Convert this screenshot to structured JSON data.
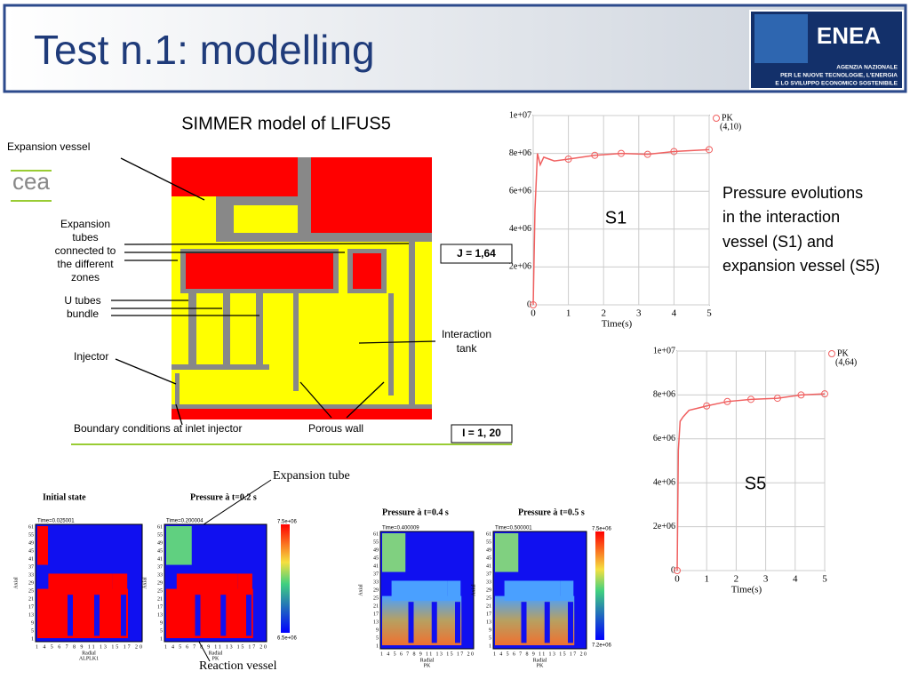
{
  "header": {
    "title": "Test n.1: modelling",
    "logo": {
      "name": "ENEA",
      "lines": [
        "AGENZIA NAZIONALE",
        "PER LE NUOVE TECNOLOGIE, L'ENERGIA",
        "E LO SVILUPPO ECONOMICO SOSTENIBILE"
      ]
    }
  },
  "model": {
    "title": "SIMMER model of LIFUS5",
    "cea": "cea",
    "labels": {
      "expansion_vessel": "Expansion vessel",
      "expansion_tubes": [
        "Expansion",
        "tubes",
        "connected to",
        "the different",
        "zones"
      ],
      "u_tubes": [
        "U tubes",
        "bundle"
      ],
      "injector": "Injector",
      "boundary": "Boundary conditions at inlet injector",
      "porous": "Porous wall",
      "tank": [
        "Interaction",
        "tank"
      ],
      "j": "J = 1,64",
      "i": "I = 1, 20"
    }
  },
  "description": [
    "Pressure evolutions",
    "in the interaction",
    "vessel (S1) and",
    "expansion vessel (S5)"
  ],
  "plots": [
    {
      "name": "S1",
      "legend": [
        "PK",
        "(4,10)"
      ],
      "xlabel": "Time(s)",
      "xlim": [
        0,
        5
      ],
      "ylim": [
        0,
        10000000
      ],
      "xticks": [
        0,
        1,
        2,
        3,
        4,
        5
      ],
      "yticks": [
        0,
        {
          "value": 2000000,
          "label": "2e+06"
        },
        {
          "value": 4000000,
          "label": "4e+06"
        },
        {
          "value": 6000000,
          "label": "6e+06"
        },
        {
          "value": 8000000,
          "label": "8e+06"
        },
        {
          "value": 10000000,
          "label": "1e+07"
        }
      ],
      "x": [
        0,
        0.05,
        0.12,
        0.2,
        0.3,
        0.6,
        1,
        1.75,
        2.5,
        3.25,
        4,
        5
      ],
      "values": [
        0,
        5000000,
        8000000,
        7400000,
        7800000,
        7600000,
        7700000,
        7900000,
        8000000,
        7950000,
        8100000,
        8200000
      ],
      "markers": {
        "x": [
          0,
          1,
          1.75,
          2.5,
          3.25,
          4,
          5
        ],
        "values": [
          0,
          7700000,
          7900000,
          8000000,
          7950000,
          8100000,
          8200000
        ]
      }
    },
    {
      "name": "S5",
      "legend": [
        "PK",
        "(4,64)"
      ],
      "xlabel": "Time(s)",
      "xlim": [
        0,
        5
      ],
      "ylim": [
        0,
        10000000
      ],
      "xticks": [
        0,
        1,
        2,
        3,
        4,
        5
      ],
      "yticks": [
        0,
        {
          "value": 2000000,
          "label": "2e+06"
        },
        {
          "value": 4000000,
          "label": "4e+06"
        },
        {
          "value": 6000000,
          "label": "6e+06"
        },
        {
          "value": 8000000,
          "label": "8e+06"
        },
        {
          "value": 10000000,
          "label": "1e+07"
        }
      ],
      "x": [
        0,
        0.04,
        0.1,
        0.2,
        0.4,
        0.7,
        1,
        1.7,
        2.5,
        3.4,
        4.2,
        5
      ],
      "values": [
        0,
        5500000,
        6800000,
        7000000,
        7300000,
        7400000,
        7500000,
        7700000,
        7800000,
        7850000,
        8000000,
        8050000
      ],
      "markers": {
        "x": [
          0,
          1,
          1.7,
          2.5,
          3.4,
          4.2,
          5
        ],
        "values": [
          0,
          7500000,
          7700000,
          7800000,
          7850000,
          8000000,
          8050000
        ]
      }
    }
  ],
  "snapshots": {
    "expansion_tube": "Expansion tube",
    "reaction_vessel": "Reaction vessel",
    "panels": [
      {
        "title": "Initial state",
        "time": "Time=0.025001",
        "axis_y": "Axial",
        "axis_x": "Radial",
        "variable": "ALPLK1",
        "yticks": [
          "61",
          "55",
          "49",
          "45",
          "41",
          "37",
          "33",
          "29",
          "25",
          "21",
          "17",
          "13",
          "9",
          "5",
          "1"
        ],
        "xticks": "1 4 5 6 7 8 9 11 13 15 17 20"
      },
      {
        "title": "Pressure à t=0.2 s",
        "time": "Time=0.200004",
        "axis_y": "Axial",
        "axis_x": "Radial",
        "variable": "PK",
        "yticks": [
          "61",
          "55",
          "49",
          "45",
          "41",
          "37",
          "33",
          "29",
          "25",
          "21",
          "17",
          "13",
          "9",
          "5",
          "1"
        ],
        "xticks": "1 4 5 6 7 8 9 11 13 15 17 20",
        "cbar": [
          "7.5e+06",
          "6.5e+06"
        ]
      },
      {
        "title": "Pressure à t=0.4 s",
        "time": "Time=0.400009",
        "axis_y": "Axial",
        "axis_x": "Radial",
        "variable": "PK",
        "yticks": [
          "61",
          "55",
          "49",
          "45",
          "41",
          "37",
          "33",
          "29",
          "25",
          "21",
          "17",
          "13",
          "9",
          "5",
          "1"
        ],
        "xticks": "1 4 5 6 7 8 9 11 13 15 17 20"
      },
      {
        "title": "Pressure à t=0.5 s",
        "time": "Time=0.500001",
        "axis_y": "Axial",
        "axis_x": "Radial",
        "variable": "PK",
        "yticks": [
          "61",
          "55",
          "49",
          "45",
          "41",
          "37",
          "33",
          "29",
          "25",
          "21",
          "17",
          "13",
          "9",
          "5",
          "1"
        ],
        "xticks": "1 4 5 6 7 8 9 11 13 15 17 20",
        "cbar": [
          "7.5e+06",
          "7.2e+06"
        ]
      }
    ]
  }
}
